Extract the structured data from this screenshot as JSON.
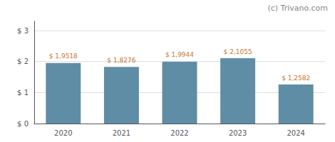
{
  "chart_data": {
    "type": "bar",
    "categories": [
      "2020",
      "2021",
      "2022",
      "2023",
      "2024"
    ],
    "values": [
      1.9518,
      1.8276,
      1.9944,
      2.1055,
      1.2582
    ],
    "value_labels": [
      "$ 1,9518",
      "$ 1,8276",
      "$ 1,9944",
      "$ 2,1055",
      "$ 1,2582"
    ],
    "color": "#5f8da6",
    "ylim": [
      0,
      3.3
    ],
    "yticks": [
      {
        "value": 0,
        "label": "$ 0"
      },
      {
        "value": 1,
        "label": "$ 1"
      },
      {
        "value": 2,
        "label": "$ 2"
      },
      {
        "value": 3,
        "label": "$ 3"
      }
    ],
    "grid": true,
    "data_labels": true,
    "annotations": [
      "(c) Trivano.com"
    ]
  }
}
